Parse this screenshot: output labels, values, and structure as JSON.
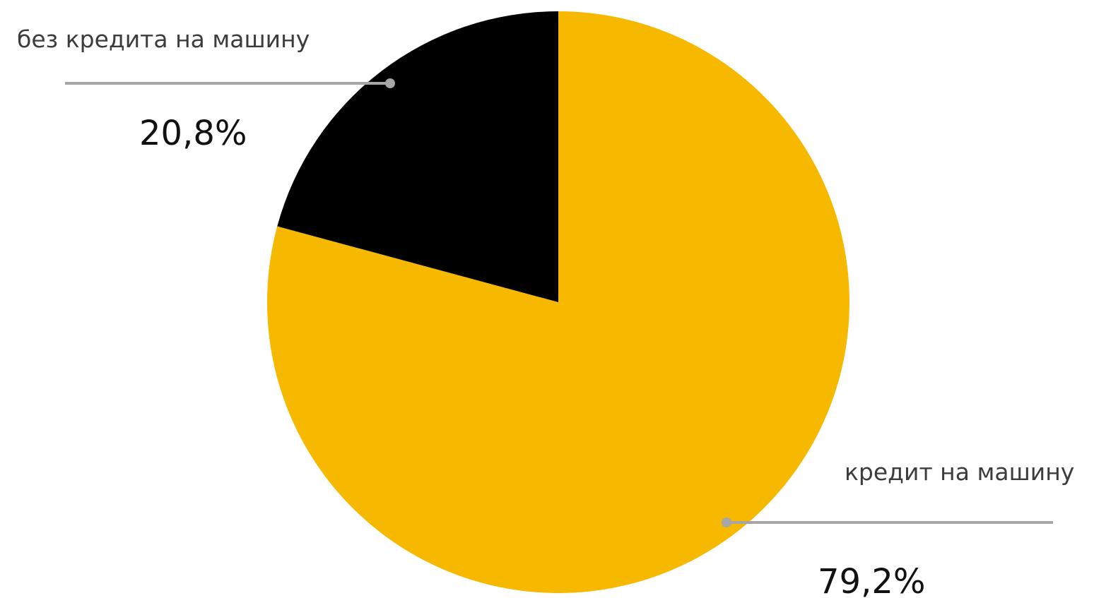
{
  "chart_data": {
    "type": "pie",
    "title": "",
    "slices": [
      {
        "label": "кредит на машину",
        "value": 79.2,
        "value_label": "79,2%",
        "color": "#f7b800"
      },
      {
        "label": "без кредита на машину",
        "value": 20.8,
        "value_label": "20,8%",
        "color": "#000000"
      }
    ],
    "start": "12 o'clock",
    "direction": "clockwise",
    "legend": "none",
    "data_labels": "outside with leader lines"
  }
}
